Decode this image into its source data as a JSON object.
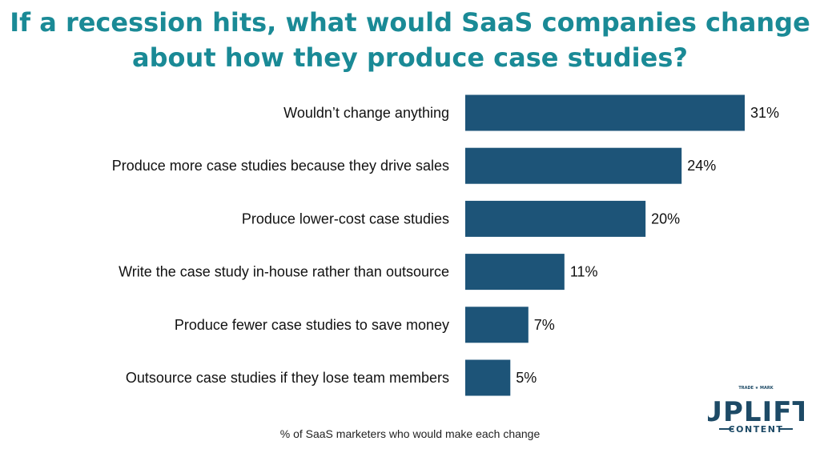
{
  "page": {
    "title_line1": "If a recession hits, what would SaaS companies change",
    "title_line2": "about how they produce case studies?",
    "footnote": "% of SaaS marketers who would make each change",
    "logo": {
      "top_text": "TRADE ★ MARK",
      "main_text": "UPLIFT",
      "sub_text": "CONTENT"
    }
  },
  "colors": {
    "title": "#1a8a96",
    "bar": "#1d5478",
    "logo": "#1d4a66"
  },
  "chart_data": {
    "type": "bar",
    "orientation": "horizontal",
    "title": "If a recession hits, what would SaaS companies change about how they produce case studies?",
    "xlabel": "% of SaaS marketers who would make each change",
    "ylabel": "",
    "categories": [
      "Wouldn’t change anything",
      "Produce more case studies because they drive sales",
      "Produce lower-cost case studies",
      "Write the case study in-house rather than outsource",
      "Produce fewer case studies to save money",
      "Outsource case studies if they lose team members"
    ],
    "values": [
      31,
      24,
      20,
      11,
      7,
      5
    ],
    "value_labels": [
      "31%",
      "24%",
      "20%",
      "11%",
      "7%",
      "5%"
    ],
    "unit": "%",
    "grid": false,
    "legend": "none"
  }
}
